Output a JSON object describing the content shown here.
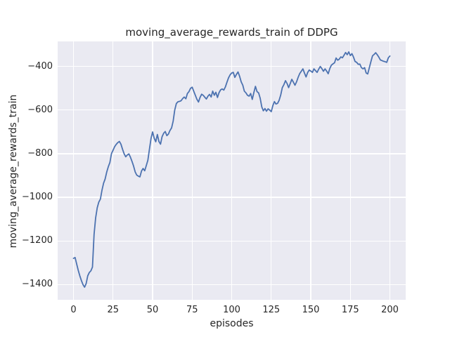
{
  "accent_colors": {
    "line": "#4c72b0",
    "plot_background": "#eaeaf2",
    "grid": "#ffffff",
    "text": "#262626",
    "figure_background": "#ffffff"
  },
  "chart_data": {
    "type": "line",
    "title": "moving_average_rewards_train of DDPG",
    "xlabel": "episodes",
    "ylabel": "moving_average_rewards_train",
    "legend": "none",
    "grid": "on (seaborn darkgrid, white gridlines on light lavender background)",
    "xlim": [
      -10,
      210
    ],
    "ylim": [
      -1470,
      -285
    ],
    "x_ticks": [
      0,
      25,
      50,
      75,
      100,
      125,
      150,
      175,
      200
    ],
    "x_tick_labels": [
      "0",
      "25",
      "50",
      "75",
      "100",
      "125",
      "150",
      "175",
      "200"
    ],
    "y_ticks": [
      -400,
      -600,
      -800,
      -1000,
      -1200,
      -1400
    ],
    "y_tick_labels": [
      "−400",
      "−600",
      "−800",
      "−1000",
      "−1200",
      "−1400"
    ],
    "series_name": "moving_average_rewards_train",
    "x0": 0,
    "dx": 1,
    "values": [
      -1280,
      -1276,
      -1305,
      -1335,
      -1360,
      -1382,
      -1400,
      -1412,
      -1396,
      -1360,
      -1345,
      -1337,
      -1320,
      -1170,
      -1095,
      -1048,
      -1022,
      -1008,
      -968,
      -935,
      -916,
      -884,
      -860,
      -840,
      -800,
      -784,
      -768,
      -757,
      -749,
      -744,
      -756,
      -780,
      -800,
      -814,
      -806,
      -801,
      -816,
      -836,
      -857,
      -884,
      -898,
      -903,
      -906,
      -879,
      -868,
      -878,
      -855,
      -830,
      -780,
      -730,
      -700,
      -729,
      -745,
      -712,
      -744,
      -756,
      -722,
      -706,
      -698,
      -717,
      -710,
      -693,
      -682,
      -650,
      -600,
      -570,
      -562,
      -560,
      -557,
      -547,
      -540,
      -548,
      -524,
      -515,
      -500,
      -495,
      -513,
      -532,
      -550,
      -563,
      -542,
      -527,
      -532,
      -541,
      -549,
      -536,
      -528,
      -540,
      -513,
      -532,
      -518,
      -542,
      -520,
      -507,
      -503,
      -508,
      -494,
      -472,
      -452,
      -438,
      -430,
      -427,
      -450,
      -436,
      -425,
      -445,
      -470,
      -486,
      -513,
      -521,
      -532,
      -536,
      -524,
      -551,
      -520,
      -491,
      -515,
      -521,
      -545,
      -585,
      -603,
      -593,
      -605,
      -594,
      -600,
      -607,
      -580,
      -561,
      -572,
      -569,
      -555,
      -530,
      -497,
      -483,
      -465,
      -478,
      -497,
      -478,
      -459,
      -472,
      -486,
      -470,
      -450,
      -432,
      -422,
      -411,
      -430,
      -448,
      -428,
      -416,
      -421,
      -427,
      -411,
      -419,
      -427,
      -412,
      -400,
      -410,
      -422,
      -411,
      -421,
      -433,
      -410,
      -394,
      -388,
      -383,
      -361,
      -371,
      -366,
      -356,
      -360,
      -348,
      -336,
      -346,
      -333,
      -350,
      -341,
      -357,
      -377,
      -381,
      -390,
      -389,
      -405,
      -411,
      -405,
      -430,
      -434,
      -405,
      -378,
      -351,
      -345,
      -337,
      -346,
      -357,
      -370,
      -373,
      -376,
      -378,
      -381,
      -360,
      -352
    ]
  }
}
